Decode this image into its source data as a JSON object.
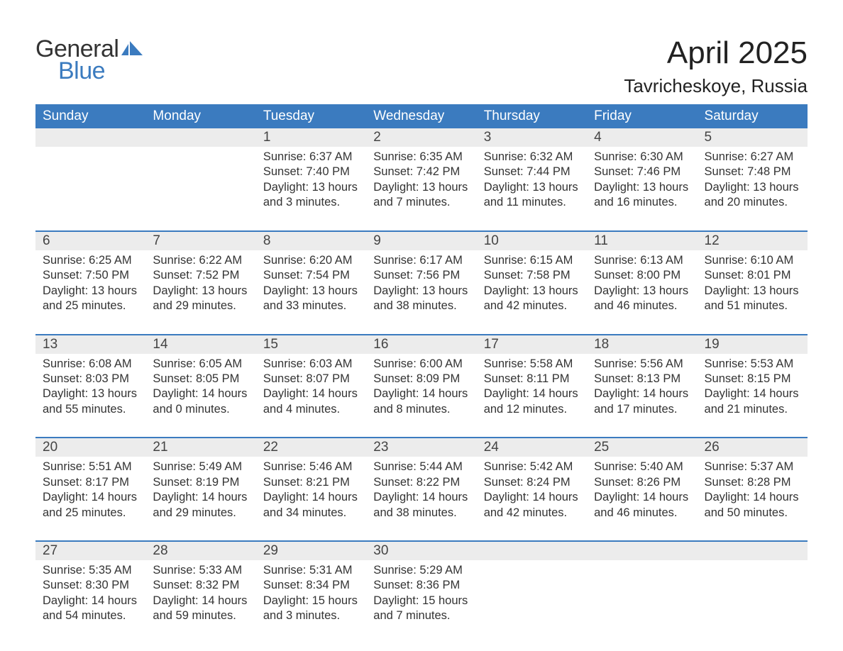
{
  "brand": {
    "word1": "General",
    "word2": "Blue"
  },
  "title": "April 2025",
  "location": "Tavricheskoye, Russia",
  "colors": {
    "header_bg": "#3b7bbf",
    "header_text": "#ffffff",
    "daynum_bg": "#ececec",
    "divider": "#3b7bbf",
    "body_text": "#333333",
    "page_bg": "#ffffff",
    "logo_blue": "#3b7bbf"
  },
  "typography": {
    "title_fontsize": 44,
    "location_fontsize": 26,
    "header_fontsize": 19,
    "daynum_fontsize": 19,
    "cell_fontsize": 16.5,
    "font_family": "Arial"
  },
  "weekdays": [
    "Sunday",
    "Monday",
    "Tuesday",
    "Wednesday",
    "Thursday",
    "Friday",
    "Saturday"
  ],
  "weeks": [
    [
      null,
      null,
      {
        "n": "1",
        "sr": "Sunrise: 6:37 AM",
        "ss": "Sunset: 7:40 PM",
        "d1": "Daylight: 13 hours",
        "d2": "and 3 minutes."
      },
      {
        "n": "2",
        "sr": "Sunrise: 6:35 AM",
        "ss": "Sunset: 7:42 PM",
        "d1": "Daylight: 13 hours",
        "d2": "and 7 minutes."
      },
      {
        "n": "3",
        "sr": "Sunrise: 6:32 AM",
        "ss": "Sunset: 7:44 PM",
        "d1": "Daylight: 13 hours",
        "d2": "and 11 minutes."
      },
      {
        "n": "4",
        "sr": "Sunrise: 6:30 AM",
        "ss": "Sunset: 7:46 PM",
        "d1": "Daylight: 13 hours",
        "d2": "and 16 minutes."
      },
      {
        "n": "5",
        "sr": "Sunrise: 6:27 AM",
        "ss": "Sunset: 7:48 PM",
        "d1": "Daylight: 13 hours",
        "d2": "and 20 minutes."
      }
    ],
    [
      {
        "n": "6",
        "sr": "Sunrise: 6:25 AM",
        "ss": "Sunset: 7:50 PM",
        "d1": "Daylight: 13 hours",
        "d2": "and 25 minutes."
      },
      {
        "n": "7",
        "sr": "Sunrise: 6:22 AM",
        "ss": "Sunset: 7:52 PM",
        "d1": "Daylight: 13 hours",
        "d2": "and 29 minutes."
      },
      {
        "n": "8",
        "sr": "Sunrise: 6:20 AM",
        "ss": "Sunset: 7:54 PM",
        "d1": "Daylight: 13 hours",
        "d2": "and 33 minutes."
      },
      {
        "n": "9",
        "sr": "Sunrise: 6:17 AM",
        "ss": "Sunset: 7:56 PM",
        "d1": "Daylight: 13 hours",
        "d2": "and 38 minutes."
      },
      {
        "n": "10",
        "sr": "Sunrise: 6:15 AM",
        "ss": "Sunset: 7:58 PM",
        "d1": "Daylight: 13 hours",
        "d2": "and 42 minutes."
      },
      {
        "n": "11",
        "sr": "Sunrise: 6:13 AM",
        "ss": "Sunset: 8:00 PM",
        "d1": "Daylight: 13 hours",
        "d2": "and 46 minutes."
      },
      {
        "n": "12",
        "sr": "Sunrise: 6:10 AM",
        "ss": "Sunset: 8:01 PM",
        "d1": "Daylight: 13 hours",
        "d2": "and 51 minutes."
      }
    ],
    [
      {
        "n": "13",
        "sr": "Sunrise: 6:08 AM",
        "ss": "Sunset: 8:03 PM",
        "d1": "Daylight: 13 hours",
        "d2": "and 55 minutes."
      },
      {
        "n": "14",
        "sr": "Sunrise: 6:05 AM",
        "ss": "Sunset: 8:05 PM",
        "d1": "Daylight: 14 hours",
        "d2": "and 0 minutes."
      },
      {
        "n": "15",
        "sr": "Sunrise: 6:03 AM",
        "ss": "Sunset: 8:07 PM",
        "d1": "Daylight: 14 hours",
        "d2": "and 4 minutes."
      },
      {
        "n": "16",
        "sr": "Sunrise: 6:00 AM",
        "ss": "Sunset: 8:09 PM",
        "d1": "Daylight: 14 hours",
        "d2": "and 8 minutes."
      },
      {
        "n": "17",
        "sr": "Sunrise: 5:58 AM",
        "ss": "Sunset: 8:11 PM",
        "d1": "Daylight: 14 hours",
        "d2": "and 12 minutes."
      },
      {
        "n": "18",
        "sr": "Sunrise: 5:56 AM",
        "ss": "Sunset: 8:13 PM",
        "d1": "Daylight: 14 hours",
        "d2": "and 17 minutes."
      },
      {
        "n": "19",
        "sr": "Sunrise: 5:53 AM",
        "ss": "Sunset: 8:15 PM",
        "d1": "Daylight: 14 hours",
        "d2": "and 21 minutes."
      }
    ],
    [
      {
        "n": "20",
        "sr": "Sunrise: 5:51 AM",
        "ss": "Sunset: 8:17 PM",
        "d1": "Daylight: 14 hours",
        "d2": "and 25 minutes."
      },
      {
        "n": "21",
        "sr": "Sunrise: 5:49 AM",
        "ss": "Sunset: 8:19 PM",
        "d1": "Daylight: 14 hours",
        "d2": "and 29 minutes."
      },
      {
        "n": "22",
        "sr": "Sunrise: 5:46 AM",
        "ss": "Sunset: 8:21 PM",
        "d1": "Daylight: 14 hours",
        "d2": "and 34 minutes."
      },
      {
        "n": "23",
        "sr": "Sunrise: 5:44 AM",
        "ss": "Sunset: 8:22 PM",
        "d1": "Daylight: 14 hours",
        "d2": "and 38 minutes."
      },
      {
        "n": "24",
        "sr": "Sunrise: 5:42 AM",
        "ss": "Sunset: 8:24 PM",
        "d1": "Daylight: 14 hours",
        "d2": "and 42 minutes."
      },
      {
        "n": "25",
        "sr": "Sunrise: 5:40 AM",
        "ss": "Sunset: 8:26 PM",
        "d1": "Daylight: 14 hours",
        "d2": "and 46 minutes."
      },
      {
        "n": "26",
        "sr": "Sunrise: 5:37 AM",
        "ss": "Sunset: 8:28 PM",
        "d1": "Daylight: 14 hours",
        "d2": "and 50 minutes."
      }
    ],
    [
      {
        "n": "27",
        "sr": "Sunrise: 5:35 AM",
        "ss": "Sunset: 8:30 PM",
        "d1": "Daylight: 14 hours",
        "d2": "and 54 minutes."
      },
      {
        "n": "28",
        "sr": "Sunrise: 5:33 AM",
        "ss": "Sunset: 8:32 PM",
        "d1": "Daylight: 14 hours",
        "d2": "and 59 minutes."
      },
      {
        "n": "29",
        "sr": "Sunrise: 5:31 AM",
        "ss": "Sunset: 8:34 PM",
        "d1": "Daylight: 15 hours",
        "d2": "and 3 minutes."
      },
      {
        "n": "30",
        "sr": "Sunrise: 5:29 AM",
        "ss": "Sunset: 8:36 PM",
        "d1": "Daylight: 15 hours",
        "d2": "and 7 minutes."
      },
      null,
      null,
      null
    ]
  ]
}
